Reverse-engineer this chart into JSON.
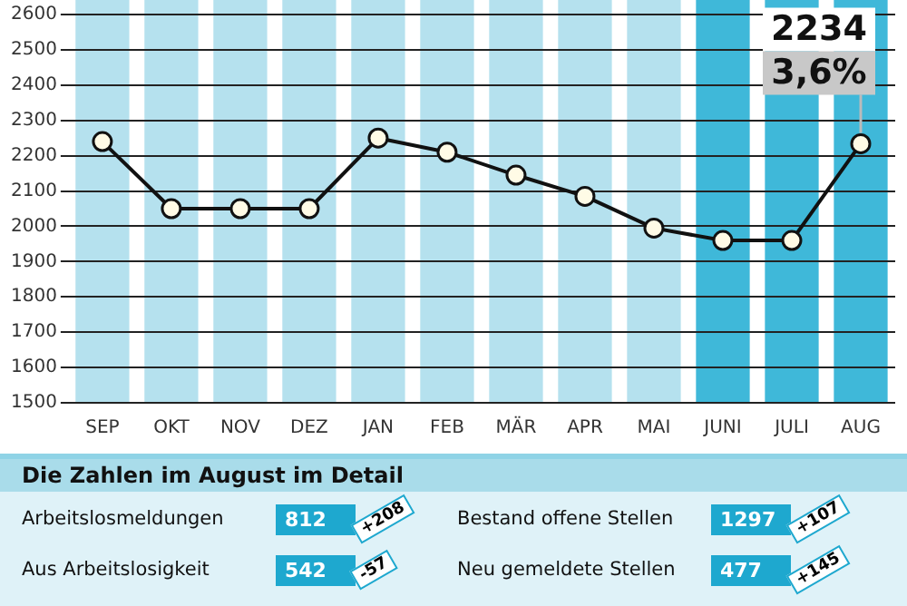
{
  "chart_data": {
    "type": "line",
    "categories": [
      "SEP",
      "OKT",
      "NOV",
      "DEZ",
      "JAN",
      "FEB",
      "MÄR",
      "APR",
      "MAI",
      "JUNI",
      "JULI",
      "AUG"
    ],
    "series": [
      {
        "color": "#111111",
        "values": [
          2240,
          2050,
          2050,
          2050,
          2250,
          2210,
          2145,
          2085,
          1995,
          1960,
          1960,
          2234
        ],
        "value_labels": [
          null,
          null,
          null,
          null,
          null,
          null,
          null,
          null,
          null,
          null,
          null,
          "2234"
        ]
      }
    ],
    "ylim": [
      1500,
      2600
    ],
    "yticks": [
      1500,
      1600,
      1700,
      1800,
      1900,
      2000,
      2100,
      2200,
      2300,
      2400,
      2500,
      2600
    ],
    "bands": [
      {
        "axis": "x",
        "from": "SEP",
        "to": "SEP",
        "color": "#b5e1ee"
      },
      {
        "axis": "x",
        "from": "OKT",
        "to": "OKT",
        "color": "#b5e1ee"
      },
      {
        "axis": "x",
        "from": "NOV",
        "to": "NOV",
        "color": "#b5e1ee"
      },
      {
        "axis": "x",
        "from": "DEZ",
        "to": "DEZ",
        "color": "#b5e1ee"
      },
      {
        "axis": "x",
        "from": "JAN",
        "to": "JAN",
        "color": "#b5e1ee"
      },
      {
        "axis": "x",
        "from": "FEB",
        "to": "FEB",
        "color": "#b5e1ee"
      },
      {
        "axis": "x",
        "from": "MÄR",
        "to": "MÄR",
        "color": "#b5e1ee"
      },
      {
        "axis": "x",
        "from": "APR",
        "to": "APR",
        "color": "#b5e1ee"
      },
      {
        "axis": "x",
        "from": "MAI",
        "to": "MAI",
        "color": "#b5e1ee"
      },
      {
        "axis": "x",
        "from": "JUNI",
        "to": "JUNI",
        "color": "#3fb8d9"
      },
      {
        "axis": "x",
        "from": "JULI",
        "to": "JULI",
        "color": "#3fb8d9"
      },
      {
        "axis": "x",
        "from": "AUG",
        "to": "AUG",
        "color": "#3fb8d9"
      }
    ],
    "grid": "y",
    "legend": false,
    "marker": "circle",
    "line_style": "solid",
    "annotations": [
      {
        "text": "3,6%",
        "x": "AUG",
        "y": 2234
      },
      "Die Zahlen im August im Detail",
      "Arbeitslosmeldungen",
      "812",
      "+208",
      "Bestand offene Stellen",
      "1297",
      "+107",
      "Aus Arbeitslosigkeit",
      "542",
      "-57",
      "Neu gemeldete Stellen",
      "477",
      "+145"
    ]
  }
}
